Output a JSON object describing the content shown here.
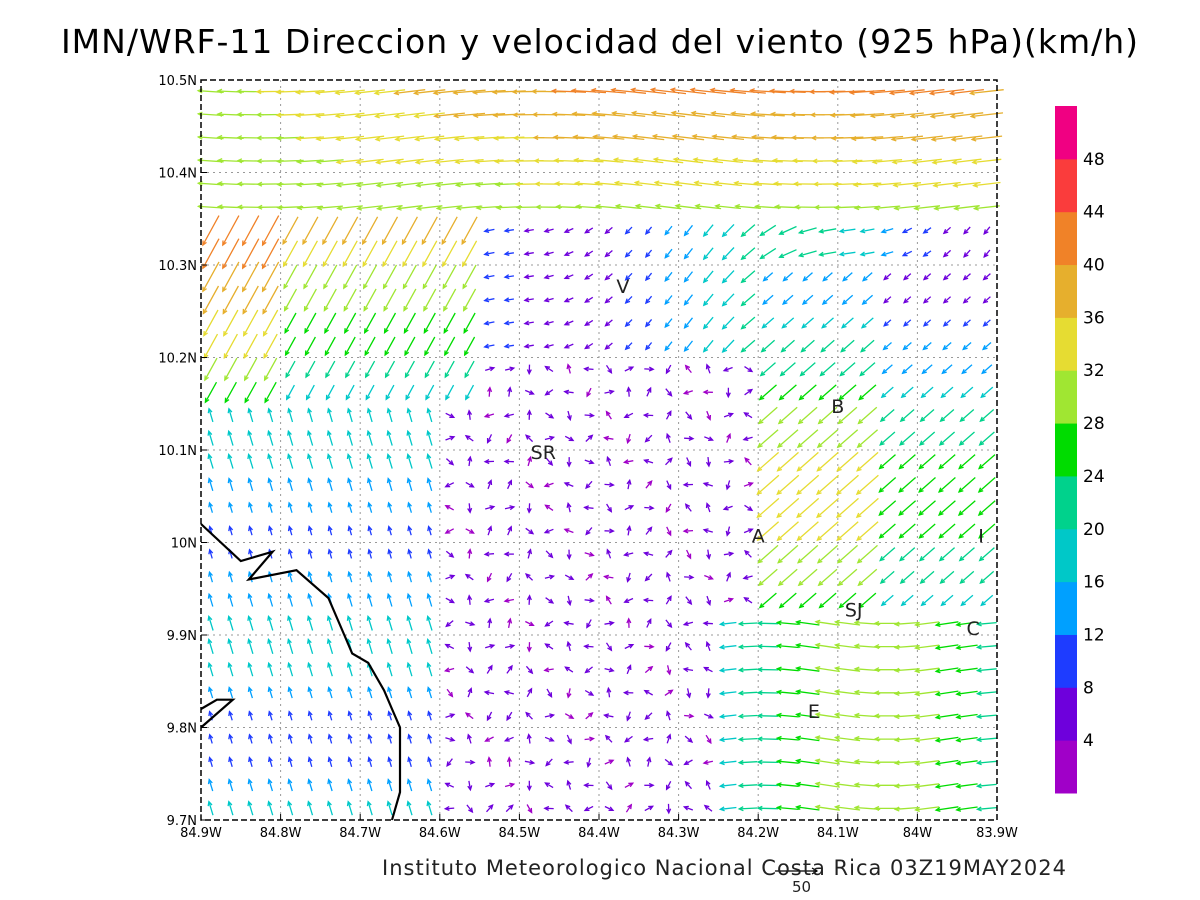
{
  "title": "IMN/WRF-11 Direccion y velocidad del viento (925 hPa)(km/h)",
  "footer": "Instituto Meteorologico Nacional Costa Rica 03Z19MAY2024",
  "reference_vector": {
    "value": 50,
    "label": "50"
  },
  "map": {
    "lon_range": [
      -84.9,
      -83.9
    ],
    "lat_range": [
      9.7,
      10.5
    ],
    "x_ticks": [
      "84.9W",
      "84.8W",
      "84.7W",
      "84.6W",
      "84.5W",
      "84.4W",
      "84.3W",
      "84.2W",
      "84.1W",
      "84W",
      "83.9W"
    ],
    "y_ticks": [
      "9.7N",
      "9.8N",
      "9.9N",
      "10N",
      "10.1N",
      "10.2N",
      "10.3N",
      "10.4N",
      "10.5N"
    ],
    "grid": "dotted",
    "places": [
      {
        "label": "V",
        "lon": -84.37,
        "lat": 10.27
      },
      {
        "label": "SR",
        "lon": -84.47,
        "lat": 10.09
      },
      {
        "label": "B",
        "lon": -84.1,
        "lat": 10.14
      },
      {
        "label": "A",
        "lon": -84.2,
        "lat": 10.0
      },
      {
        "label": "I",
        "lon": -83.92,
        "lat": 10.0
      },
      {
        "label": "SJ",
        "lon": -84.08,
        "lat": 9.92
      },
      {
        "label": "C",
        "lon": -83.93,
        "lat": 9.9
      },
      {
        "label": "E",
        "lon": -84.13,
        "lat": 9.81
      }
    ],
    "coastline": [
      [
        -84.9,
        10.02
      ],
      [
        -84.85,
        9.98
      ],
      [
        -84.81,
        9.99
      ],
      [
        -84.84,
        9.96
      ],
      [
        -84.78,
        9.97
      ],
      [
        -84.74,
        9.94
      ],
      [
        -84.72,
        9.9
      ],
      [
        -84.71,
        9.88
      ],
      [
        -84.69,
        9.87
      ],
      [
        -84.67,
        9.84
      ],
      [
        -84.66,
        9.82
      ],
      [
        -84.65,
        9.8
      ],
      [
        -84.65,
        9.73
      ],
      [
        -84.66,
        9.7
      ]
    ],
    "coastline2": [
      [
        -84.9,
        9.82
      ],
      [
        -84.88,
        9.83
      ],
      [
        -84.86,
        9.83
      ],
      [
        -84.9,
        9.8
      ]
    ]
  },
  "colorbar": {
    "labels": [
      "4",
      "8",
      "12",
      "16",
      "20",
      "24",
      "28",
      "32",
      "36",
      "40",
      "44",
      "48"
    ],
    "colors": [
      "#a000c8",
      "#6e00dc",
      "#1e3cff",
      "#00a0ff",
      "#00c8c8",
      "#00d28c",
      "#00dc00",
      "#a0e632",
      "#e6dc32",
      "#e6af2d",
      "#f08228",
      "#fa3c3c",
      "#f00082"
    ]
  },
  "chart_data": {
    "type": "vector_field",
    "units": "km/h",
    "level": "925 hPa",
    "valid_time": "03Z19MAY2024",
    "grid_lon_step": 0.025,
    "grid_lat_step": 0.025,
    "description_of_regimes": [
      {
        "region": "north band 10.35N-10.5N",
        "direction": "from east",
        "speed_range": [
          28,
          44
        ]
      },
      {
        "region": "northwest 10.15N-10.35N, 84.9W-84.55W",
        "direction": "from north-east",
        "speed_range": [
          16,
          40
        ]
      },
      {
        "region": "southwest coastal 9.7N-10.1N, 84.9W-84.6W",
        "direction": "from south",
        "speed_range": [
          12,
          20
        ]
      },
      {
        "region": "central 9.7N-10.2N, 84.6W-84.25W",
        "direction": "variable",
        "speed_range": [
          2,
          8
        ]
      },
      {
        "region": "east 9.9N-10.25N, 84.2W-83.9W",
        "direction": "from north-east / east",
        "speed_range": [
          16,
          36
        ]
      },
      {
        "region": "southeast 9.75N-9.9N, 84.2W-83.9W",
        "direction": "from east",
        "speed_range": [
          16,
          36
        ]
      }
    ]
  }
}
